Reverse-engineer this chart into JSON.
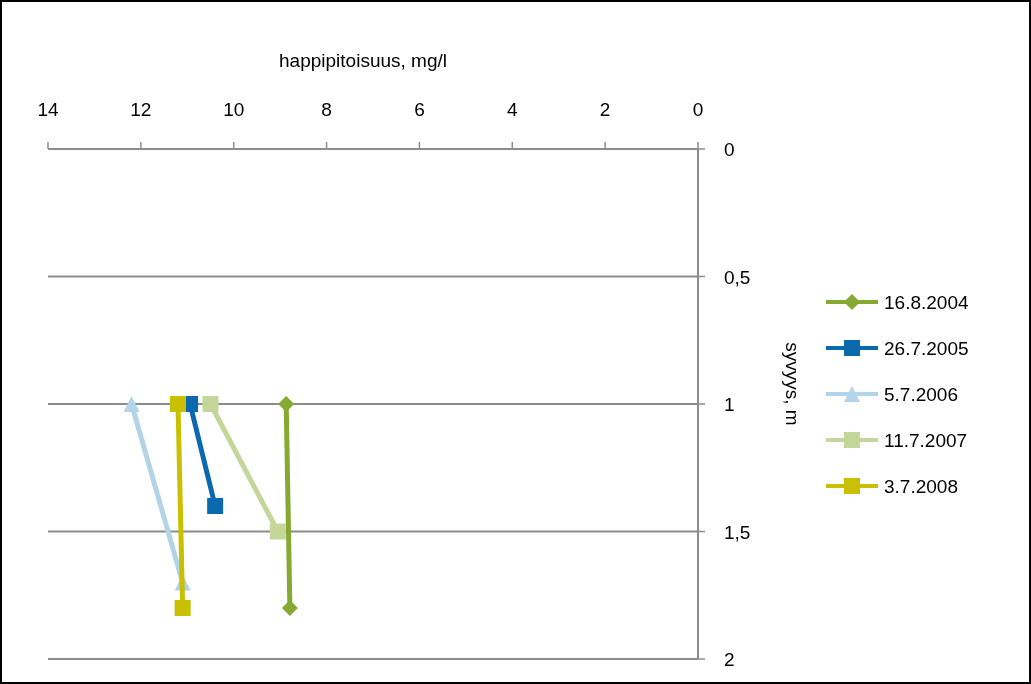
{
  "chart_data": {
    "type": "line",
    "xlabel": "happipitoisuus, mg/l",
    "ylabel": "syvyys, m",
    "xlim": [
      14,
      0
    ],
    "xticks": [
      14,
      12,
      10,
      8,
      6,
      4,
      2,
      0
    ],
    "ylim": [
      2,
      0
    ],
    "yticks": [
      0,
      {
        "value": 0.5,
        "label": "0,5"
      },
      1,
      {
        "value": 1.5,
        "label": "1,5"
      },
      2
    ],
    "grid": "y",
    "legend": "right",
    "line_style": "solid",
    "series": [
      {
        "name": "16.8.2004",
        "color": "#86a931",
        "marker": "diamond",
        "x": [
          8.87,
          8.79
        ],
        "values": [
          1,
          1.8
        ]
      },
      {
        "name": "26.7.2005",
        "color": "#0b6aad",
        "marker": "square",
        "x": [
          10.94,
          10.4
        ],
        "values": [
          1,
          1.4
        ]
      },
      {
        "name": "5.7.2006",
        "color": "#b3d4e8",
        "marker": "triangle",
        "x": [
          12.2,
          11.1
        ],
        "values": [
          1,
          1.7
        ]
      },
      {
        "name": "11.7.2007",
        "color": "#c4d69a",
        "marker": "square",
        "x": [
          10.5,
          9.05
        ],
        "values": [
          1,
          1.5
        ]
      },
      {
        "name": "3.7.2008",
        "color": "#c8c000",
        "marker": "square",
        "x": [
          11.2,
          11.1
        ],
        "values": [
          1,
          1.8
        ]
      }
    ]
  }
}
